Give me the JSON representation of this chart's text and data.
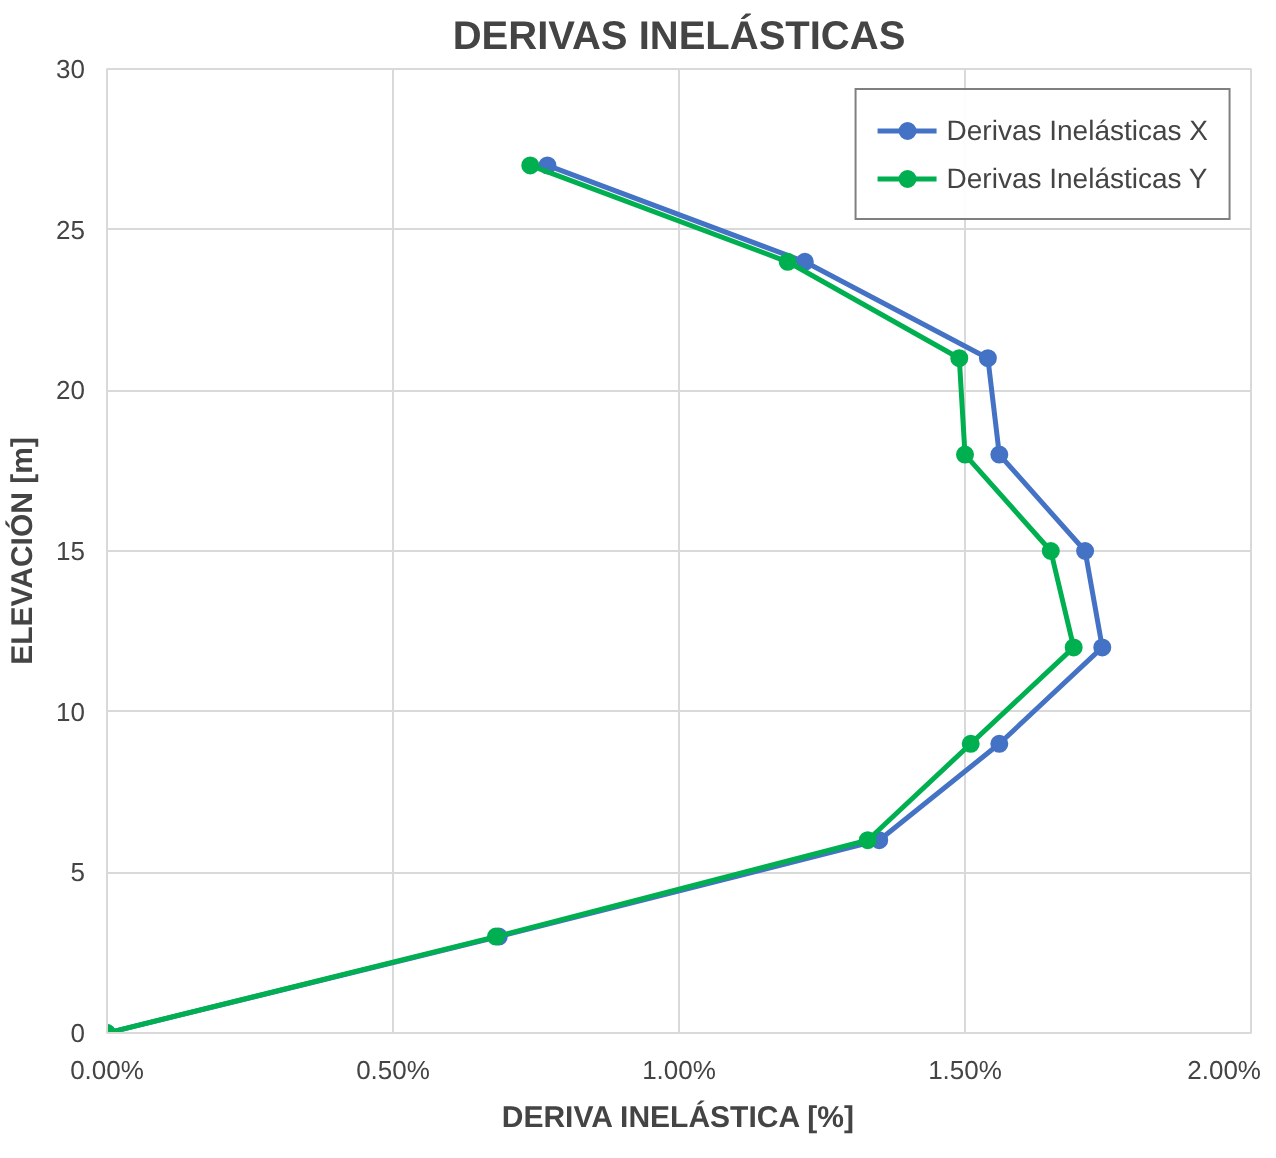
{
  "chart_data": {
    "type": "line",
    "title": "DERIVAS INELÁSTICAS",
    "xlabel": "DERIVA INELÁSTICA [%]",
    "ylabel": "ELEVACIÓN [m]",
    "xlim": [
      0,
      2
    ],
    "xticks": [
      {
        "value": 0,
        "label": "0.00%"
      },
      {
        "value": 0.5,
        "label": "0.50%"
      },
      {
        "value": 1,
        "label": "1.00%"
      },
      {
        "value": 1.5,
        "label": "1.50%"
      },
      {
        "value": 2,
        "label": "2.00%"
      }
    ],
    "ylim": [
      0,
      30
    ],
    "yticks": [
      0,
      5,
      10,
      15,
      20,
      25,
      30
    ],
    "grid": true,
    "legend": "top right",
    "marker": "circle",
    "line_style": "solid",
    "series": [
      {
        "name": "Derivas Inelásticas X",
        "color": "#4472c4",
        "x": [
          0,
          0.685,
          1.35,
          1.56,
          1.74,
          1.71,
          1.56,
          1.54,
          1.22,
          0.77
        ],
        "values": [
          0,
          3,
          6,
          9,
          12,
          15,
          18,
          21,
          24,
          27
        ]
      },
      {
        "name": "Derivas Inelásticas Y",
        "color": "#00b050",
        "x": [
          0,
          0.68,
          1.33,
          1.51,
          1.69,
          1.65,
          1.5,
          1.49,
          1.19,
          0.74
        ],
        "values": [
          0,
          3,
          6,
          9,
          12,
          15,
          18,
          21,
          24,
          27
        ]
      }
    ]
  }
}
